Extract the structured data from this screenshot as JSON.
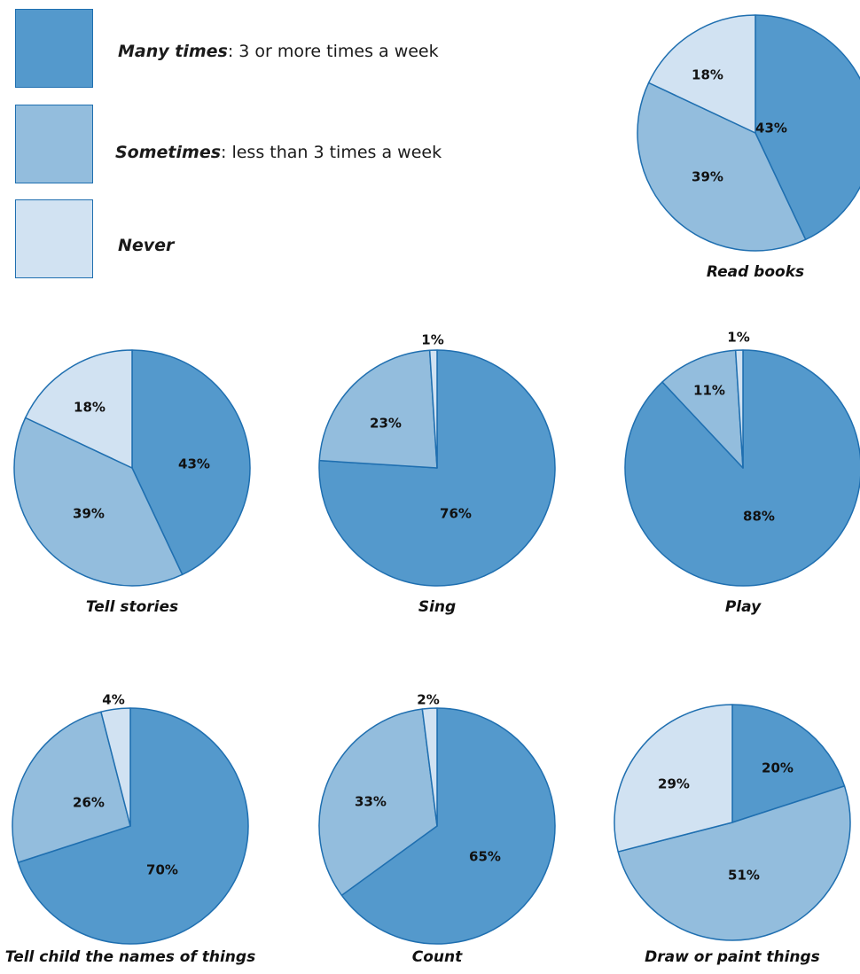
{
  "legend": [
    {
      "key": "many",
      "label": "Many times",
      "suffix": ": 3 or more times a week",
      "color": "#5499cc"
    },
    {
      "key": "sometimes",
      "label": "Sometimes",
      "suffix": ": less than 3 times a week",
      "color": "#93bddd"
    },
    {
      "key": "never",
      "label": "Never",
      "suffix": "",
      "color": "#d1e2f2"
    }
  ],
  "colors": {
    "many": "#5499cc",
    "sometimes": "#93bddd",
    "never": "#d1e2f2",
    "edge": "#1f6fb0"
  },
  "chart_data": [
    {
      "type": "pie",
      "title": "Read books",
      "slices": [
        {
          "category": "Many times",
          "value": 43,
          "label": "43%"
        },
        {
          "category": "Sometimes",
          "value": 39,
          "label": "39%"
        },
        {
          "category": "Never",
          "value": 18,
          "label": "18%"
        }
      ]
    },
    {
      "type": "pie",
      "title": "Tell stories",
      "slices": [
        {
          "category": "Many times",
          "value": 43,
          "label": "43%"
        },
        {
          "category": "Sometimes",
          "value": 39,
          "label": "39%"
        },
        {
          "category": "Never",
          "value": 18,
          "label": "18%"
        }
      ]
    },
    {
      "type": "pie",
      "title": "Sing",
      "slices": [
        {
          "category": "Many times",
          "value": 76,
          "label": "76%"
        },
        {
          "category": "Sometimes",
          "value": 23,
          "label": "23%"
        },
        {
          "category": "Never",
          "value": 1,
          "label": "1%"
        }
      ]
    },
    {
      "type": "pie",
      "title": "Play",
      "slices": [
        {
          "category": "Many times",
          "value": 88,
          "label": "88%"
        },
        {
          "category": "Sometimes",
          "value": 11,
          "label": "11%"
        },
        {
          "category": "Never",
          "value": 1,
          "label": "1%"
        }
      ]
    },
    {
      "type": "pie",
      "title": "Tell child the names of things",
      "slices": [
        {
          "category": "Many times",
          "value": 70,
          "label": "70%"
        },
        {
          "category": "Sometimes",
          "value": 26,
          "label": "26%"
        },
        {
          "category": "Never",
          "value": 4,
          "label": "4%"
        }
      ]
    },
    {
      "type": "pie",
      "title": "Count",
      "slices": [
        {
          "category": "Many times",
          "value": 65,
          "label": "65%"
        },
        {
          "category": "Sometimes",
          "value": 33,
          "label": "33%"
        },
        {
          "category": "Never",
          "value": 2,
          "label": "2%"
        }
      ]
    },
    {
      "type": "pie",
      "title": "Draw or paint things",
      "slices": [
        {
          "category": "Many times",
          "value": 20,
          "label": "20%"
        },
        {
          "category": "Sometimes",
          "value": 51,
          "label": "51%"
        },
        {
          "category": "Never",
          "value": 29,
          "label": "29%"
        }
      ]
    }
  ]
}
